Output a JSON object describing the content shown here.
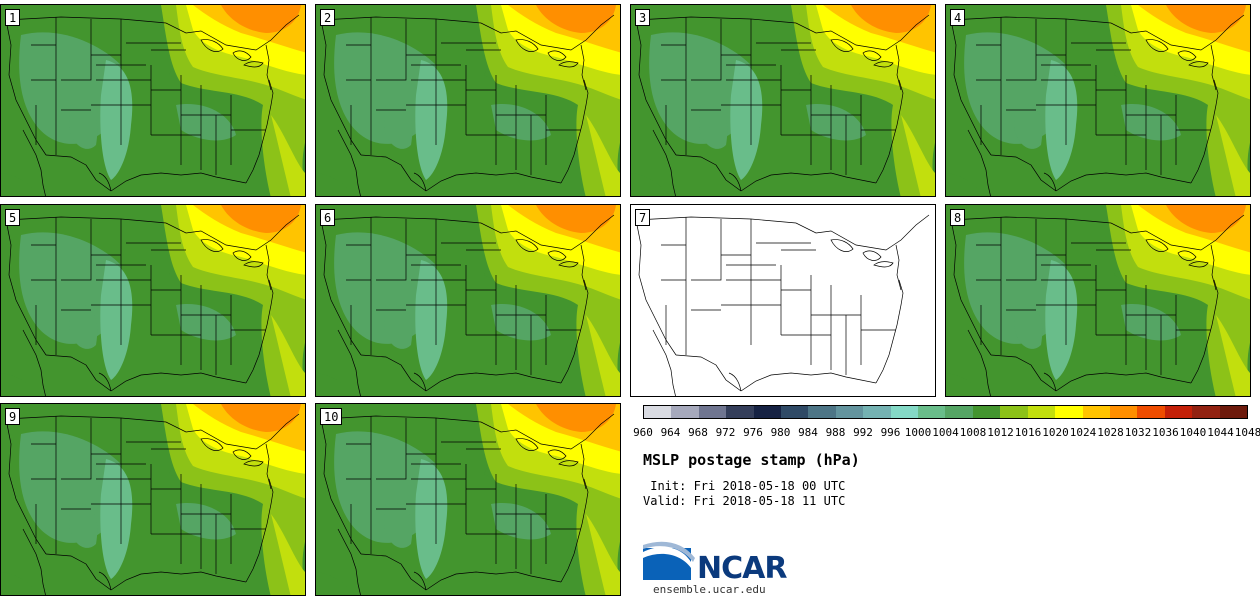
{
  "panels": [
    {
      "label": "1",
      "filled": true
    },
    {
      "label": "2",
      "filled": true
    },
    {
      "label": "3",
      "filled": true
    },
    {
      "label": "4",
      "filled": true
    },
    {
      "label": "5",
      "filled": true
    },
    {
      "label": "6",
      "filled": true
    },
    {
      "label": "7",
      "filled": false
    },
    {
      "label": "8",
      "filled": true
    },
    {
      "label": "9",
      "filled": true
    },
    {
      "label": "10",
      "filled": true
    }
  ],
  "colorbar": {
    "colors": [
      "#d9dbe2",
      "#a6a9bc",
      "#6f7590",
      "#343e5a",
      "#162243",
      "#2f4a66",
      "#4d7586",
      "#63949e",
      "#74b2b2",
      "#84d9c6",
      "#69bd8a",
      "#55a564",
      "#43952e",
      "#8cc218",
      "#c2df0d",
      "#ffff00",
      "#ffc400",
      "#ff8f00",
      "#ef4d00",
      "#c42008",
      "#922211",
      "#6d1a0c"
    ],
    "ticks": [
      "960",
      "964",
      "968",
      "972",
      "976",
      "980",
      "984",
      "988",
      "992",
      "996",
      "1000",
      "1004",
      "1008",
      "1012",
      "1016",
      "1020",
      "1024",
      "1028",
      "1032",
      "1036",
      "1040",
      "1044",
      "1048"
    ]
  },
  "title": "MSLP postage stamp (hPa)",
  "init": " Init: Fri 2018-05-18 00 UTC",
  "valid": "Valid: Fri 2018-05-18 11 UTC",
  "logo_text": "NCAR",
  "url": "ensemble.ucar.edu"
}
